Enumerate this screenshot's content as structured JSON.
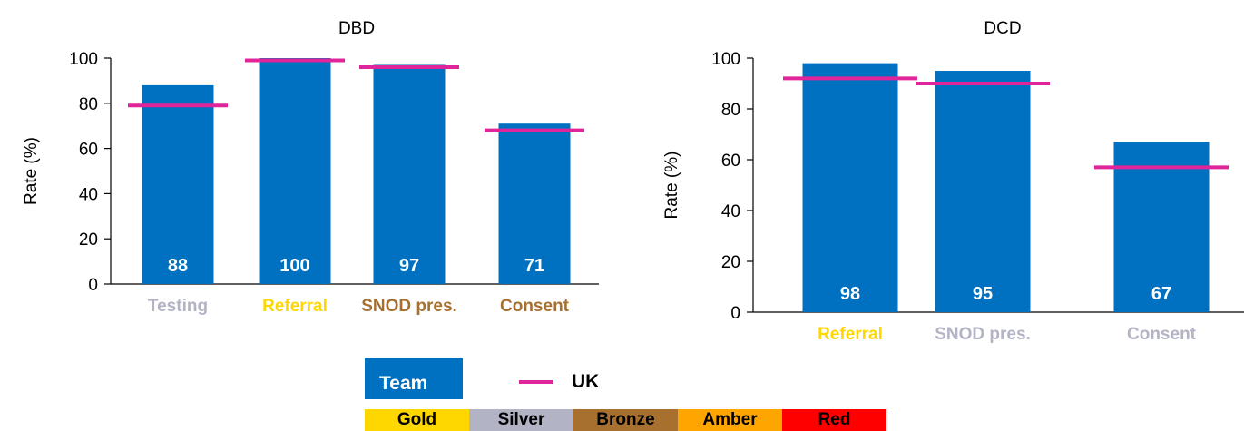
{
  "chart_data": [
    {
      "type": "bar",
      "title": "DBD",
      "ylabel": "Rate (%)",
      "ylim": [
        0,
        100
      ],
      "yticks": [
        "0",
        "20",
        "40",
        "60",
        "80",
        "100"
      ],
      "categories": [
        "Testing",
        "Referral",
        "SNOD pres.",
        "Consent"
      ],
      "category_colors": [
        "#b3b3c6",
        "#ffd700",
        "#a8702e",
        "#a8702e"
      ],
      "series": [
        {
          "name": "Team",
          "values": [
            88,
            100,
            97,
            71
          ],
          "labels": [
            "88",
            "100",
            "97",
            "71"
          ],
          "color": "#0070c0"
        },
        {
          "name": "UK",
          "values": [
            79,
            99,
            96,
            68
          ],
          "color": "#e0249a"
        }
      ]
    },
    {
      "type": "bar",
      "title": "DCD",
      "ylabel": "Rate (%)",
      "ylim": [
        0,
        100
      ],
      "yticks": [
        "0",
        "20",
        "40",
        "60",
        "80",
        "100"
      ],
      "categories": [
        "Referral",
        "SNOD pres.",
        "Consent"
      ],
      "category_colors": [
        "#ffd700",
        "#b3b3c6",
        "#b3b3c6"
      ],
      "series": [
        {
          "name": "Team",
          "values": [
            98,
            95,
            67
          ],
          "labels": [
            "98",
            "95",
            "67"
          ],
          "color": "#0070c0"
        },
        {
          "name": "UK",
          "values": [
            92,
            90,
            57
          ],
          "color": "#e0249a"
        }
      ]
    }
  ],
  "legend": {
    "team_label": "Team",
    "uk_label": "UK",
    "team_color": "#0070c0",
    "uk_color": "#e0249a"
  },
  "rating_scale": [
    {
      "label": "Gold",
      "color": "#ffd700"
    },
    {
      "label": "Silver",
      "color": "#b3b3c6"
    },
    {
      "label": "Bronze",
      "color": "#a8702e"
    },
    {
      "label": "Amber",
      "color": "#ffa500"
    },
    {
      "label": "Red",
      "color": "#ff0000"
    }
  ]
}
